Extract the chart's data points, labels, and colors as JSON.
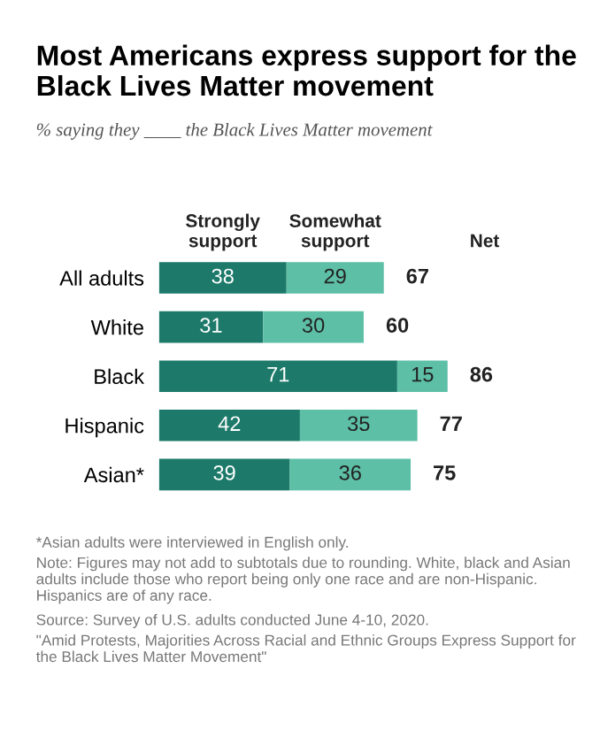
{
  "chart_data": {
    "type": "bar",
    "orientation": "horizontal",
    "stacked": true,
    "title": "Most Americans express support for the Black Lives Matter movement",
    "subtitle": "% saying they ____ the Black Lives Matter movement",
    "categories": [
      "All adults",
      "White",
      "Black",
      "Hispanic",
      "Asian*"
    ],
    "series": [
      {
        "name": "Strongly support",
        "color": "#1d7a6a",
        "values": [
          38,
          31,
          71,
          42,
          39
        ]
      },
      {
        "name": "Somewhat support",
        "color": "#5dbfa6",
        "values": [
          29,
          30,
          15,
          35,
          36
        ]
      }
    ],
    "data_labels": true,
    "legend": "top",
    "totals": [
      "67",
      "60",
      "86",
      "77",
      "75"
    ],
    "tick_labels": "y",
    "grid": false,
    "annotations": [
      "Net",
      "*Asian adults were interviewed in English only.",
      "Note: Figures may not add to subtotals due to rounding. White, black and Asian adults include those who report being only one race and are non-Hispanic. Hispanics are of any race.",
      "Source: Survey of U.S. adults conducted June 4-10, 2020.",
      "\"Amid Protests, Majorities Across Racial and Ethnic Groups Express Support for the Black Lives Matter Movement\""
    ]
  }
}
